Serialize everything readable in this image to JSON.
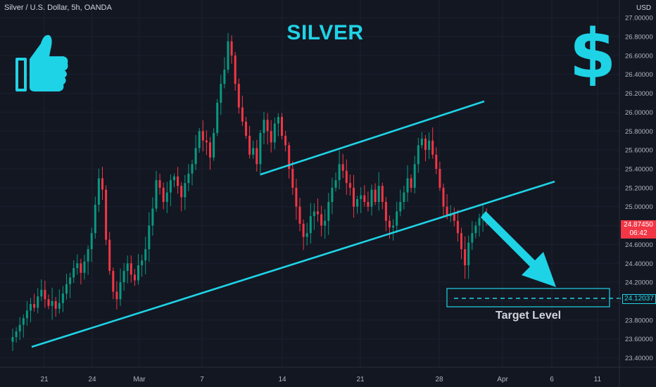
{
  "header": {
    "symbol": "Silver / U.S. Dollar, 5h, OANDA",
    "title": "SILVER",
    "currency": "USD"
  },
  "icons": {
    "thumbs": "thumbs-up-icon",
    "dollar": "dollar-icon",
    "accent": "#1fd3e6"
  },
  "price_tags": {
    "current_price": "24.87450",
    "countdown": "06:42",
    "target_price": "24.12037"
  },
  "annotations": {
    "target_label": "Target Level"
  },
  "chart_data": {
    "type": "candlestick",
    "title": "SILVER",
    "ylim": [
      23.3,
      27.15
    ],
    "y_ticks": [
      "23.40000",
      "23.60000",
      "23.80000",
      "24.00000",
      "24.20000",
      "24.40000",
      "24.60000",
      "24.80000",
      "25.00000",
      "25.20000",
      "25.40000",
      "25.60000",
      "25.80000",
      "26.00000",
      "26.20000",
      "26.40000",
      "26.60000",
      "26.80000",
      "27.00000"
    ],
    "x_ticks": [
      "21",
      "24",
      "Mar",
      "7",
      "14",
      "21",
      "28",
      "Apr",
      "6",
      "11"
    ],
    "colors": {
      "up": "#089981",
      "down": "#f23645",
      "line": "#1fd3e6"
    },
    "closes": [
      23.62,
      23.68,
      23.75,
      23.82,
      23.9,
      23.97,
      23.93,
      24.05,
      24.12,
      24.02,
      23.95,
      24.0,
      23.92,
      23.98,
      24.08,
      24.18,
      24.25,
      24.35,
      24.4,
      24.3,
      24.42,
      24.55,
      24.72,
      25.02,
      25.3,
      25.18,
      24.65,
      24.32,
      24.1,
      24.02,
      24.2,
      24.32,
      24.4,
      24.28,
      24.22,
      24.38,
      24.43,
      24.55,
      24.8,
      24.98,
      25.28,
      25.2,
      25.05,
      25.15,
      25.28,
      25.32,
      25.22,
      25.1,
      25.25,
      25.35,
      25.45,
      25.62,
      25.8,
      25.7,
      25.68,
      25.52,
      25.78,
      26.1,
      26.3,
      26.45,
      26.75,
      26.6,
      26.3,
      26.05,
      25.9,
      25.75,
      25.55,
      25.62,
      25.45,
      25.78,
      25.92,
      25.8,
      25.68,
      25.88,
      25.95,
      25.75,
      25.65,
      25.4,
      25.2,
      25.0,
      24.82,
      24.68,
      24.72,
      24.9,
      24.95,
      24.92,
      24.8,
      24.85,
      25.05,
      25.2,
      25.28,
      25.45,
      25.38,
      25.25,
      25.2,
      25.0,
      25.08,
      25.12,
      25.05,
      25.0,
      25.18,
      25.05,
      25.22,
      25.05,
      24.85,
      24.78,
      24.8,
      24.95,
      25.05,
      25.15,
      25.3,
      25.2,
      25.45,
      25.65,
      25.72,
      25.6,
      25.7,
      25.55,
      25.4,
      25.2,
      25.0,
      24.9,
      24.92,
      24.85,
      24.72,
      24.55,
      24.38,
      24.62,
      24.72,
      24.8,
      24.88,
      24.92,
      24.87
    ]
  }
}
